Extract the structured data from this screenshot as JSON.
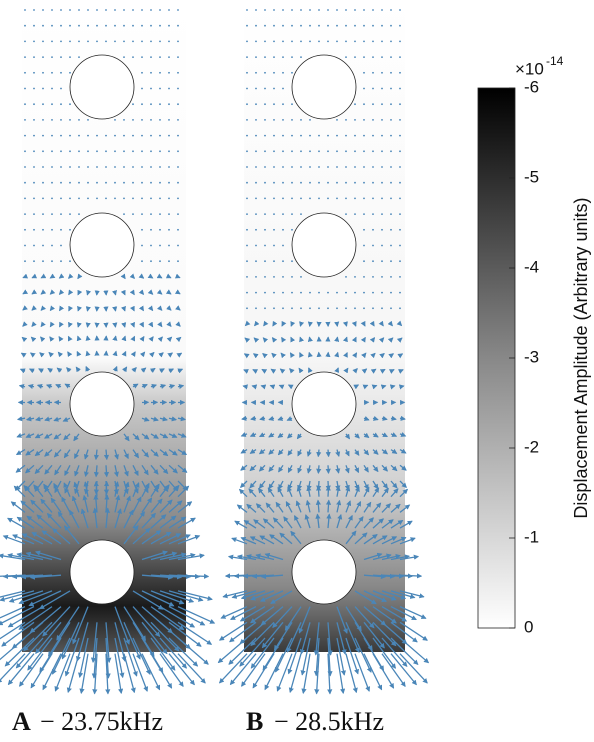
{
  "panels": [
    {
      "label": "A",
      "caption": "− 23.75kHz"
    },
    {
      "label": "B",
      "caption": "− 28.5kHz"
    }
  ],
  "colorbar": {
    "label": "Displacement Amplitude (Arbitrary units)",
    "exponent_base": "×10",
    "exponent_power": "-14",
    "lim": [
      0,
      -6
    ],
    "ticks": [
      0,
      -1,
      -2,
      -3,
      -4,
      -5,
      -6
    ]
  }
}
